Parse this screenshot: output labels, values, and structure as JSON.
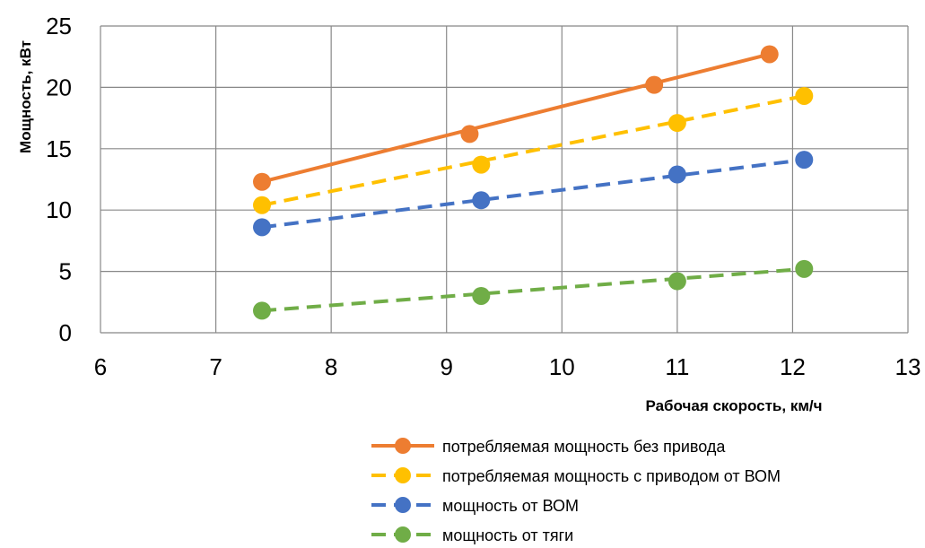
{
  "chart_data": {
    "type": "line",
    "xlabel": "Рабочая скорость, км/ч",
    "ylabel": "Мощность, кВт",
    "xlim": [
      6,
      13
    ],
    "ylim": [
      0,
      25
    ],
    "x_ticks": [
      "6",
      "7",
      "8",
      "9",
      "10",
      "11",
      "12",
      "13"
    ],
    "y_ticks": [
      "0",
      "5",
      "10",
      "15",
      "20",
      "25"
    ],
    "grid": true,
    "legend_position": "bottom",
    "series": [
      {
        "name": "потребляемая мощность без привода",
        "color": "#ED7D31",
        "dash": "solid",
        "points": [
          [
            7.4,
            12.3
          ],
          [
            9.2,
            16.2
          ],
          [
            10.8,
            20.2
          ],
          [
            11.8,
            22.7
          ]
        ]
      },
      {
        "name": "потребляемая мощность с приводом от ВОМ",
        "color": "#FFC000",
        "dash": "dashed",
        "points": [
          [
            7.4,
            10.4
          ],
          [
            9.3,
            13.7
          ],
          [
            11.0,
            17.1
          ],
          [
            12.1,
            19.3
          ]
        ]
      },
      {
        "name": "мощность от ВОМ",
        "color": "#4472C4",
        "dash": "dashed",
        "points": [
          [
            7.4,
            8.6
          ],
          [
            9.3,
            10.8
          ],
          [
            11.0,
            12.9
          ],
          [
            12.1,
            14.1
          ]
        ]
      },
      {
        "name": "мощность от тяги",
        "color": "#70AD47",
        "dash": "dashed",
        "points": [
          [
            7.4,
            1.8
          ],
          [
            9.3,
            3.0
          ],
          [
            11.0,
            4.2
          ],
          [
            12.1,
            5.2
          ]
        ]
      }
    ]
  }
}
